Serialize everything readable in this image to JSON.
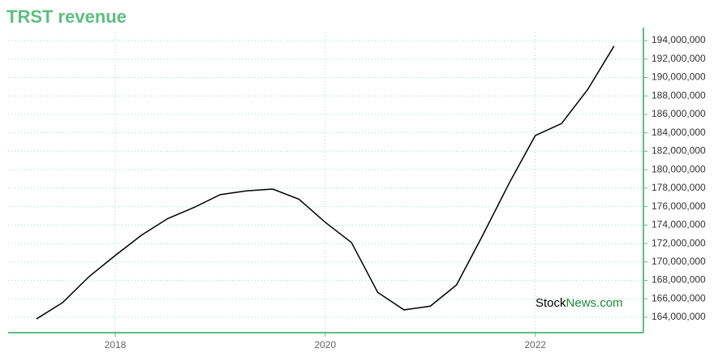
{
  "chart_data": {
    "type": "line",
    "title": "TRST revenue",
    "watermark": [
      "Stock",
      "News.com"
    ],
    "x": [
      2017.25,
      2017.5,
      2017.75,
      2018,
      2018.25,
      2018.5,
      2018.75,
      2019,
      2019.25,
      2019.5,
      2019.75,
      2020,
      2020.25,
      2020.5,
      2020.75,
      2021,
      2021.25,
      2021.5,
      2021.75,
      2022,
      2022.25,
      2022.5,
      2022.75
    ],
    "series": [
      {
        "name": "revenue",
        "color": "#000000",
        "values": [
          163820000,
          165600000,
          168400000,
          170700000,
          172900000,
          174700000,
          175900000,
          177300000,
          177700000,
          177900000,
          176800000,
          174300000,
          172100000,
          166700000,
          164800000,
          165200000,
          167500000,
          172900000,
          178500000,
          183700000,
          185000000,
          188700000,
          193400000
        ]
      }
    ],
    "xlim": [
      2016.98,
      2023.03
    ],
    "xticks": [
      2018,
      2020,
      2022
    ],
    "ylim": [
      162330000,
      194880000
    ],
    "yticks": [
      {
        "value": 164000000,
        "label": "164,000,000"
      },
      {
        "value": 166000000,
        "label": "166,000,000"
      },
      {
        "value": 168000000,
        "label": "168,000,000"
      },
      {
        "value": 170000000,
        "label": "170,000,000"
      },
      {
        "value": 172000000,
        "label": "172,000,000"
      },
      {
        "value": 174000000,
        "label": "174,000,000"
      },
      {
        "value": 176000000,
        "label": "176,000,000"
      },
      {
        "value": 178000000,
        "label": "178,000,000"
      },
      {
        "value": 180000000,
        "label": "180,000,000"
      },
      {
        "value": 182000000,
        "label": "182,000,000"
      },
      {
        "value": 184000000,
        "label": "184,000,000"
      },
      {
        "value": 186000000,
        "label": "186,000,000"
      },
      {
        "value": 188000000,
        "label": "188,000,000"
      },
      {
        "value": 190000000,
        "label": "190,000,000"
      },
      {
        "value": 192000000,
        "label": "192,000,000"
      },
      {
        "value": 194000000,
        "label": "194,000,000"
      }
    ],
    "grid": true,
    "axis_color": "#5dbf7f"
  }
}
